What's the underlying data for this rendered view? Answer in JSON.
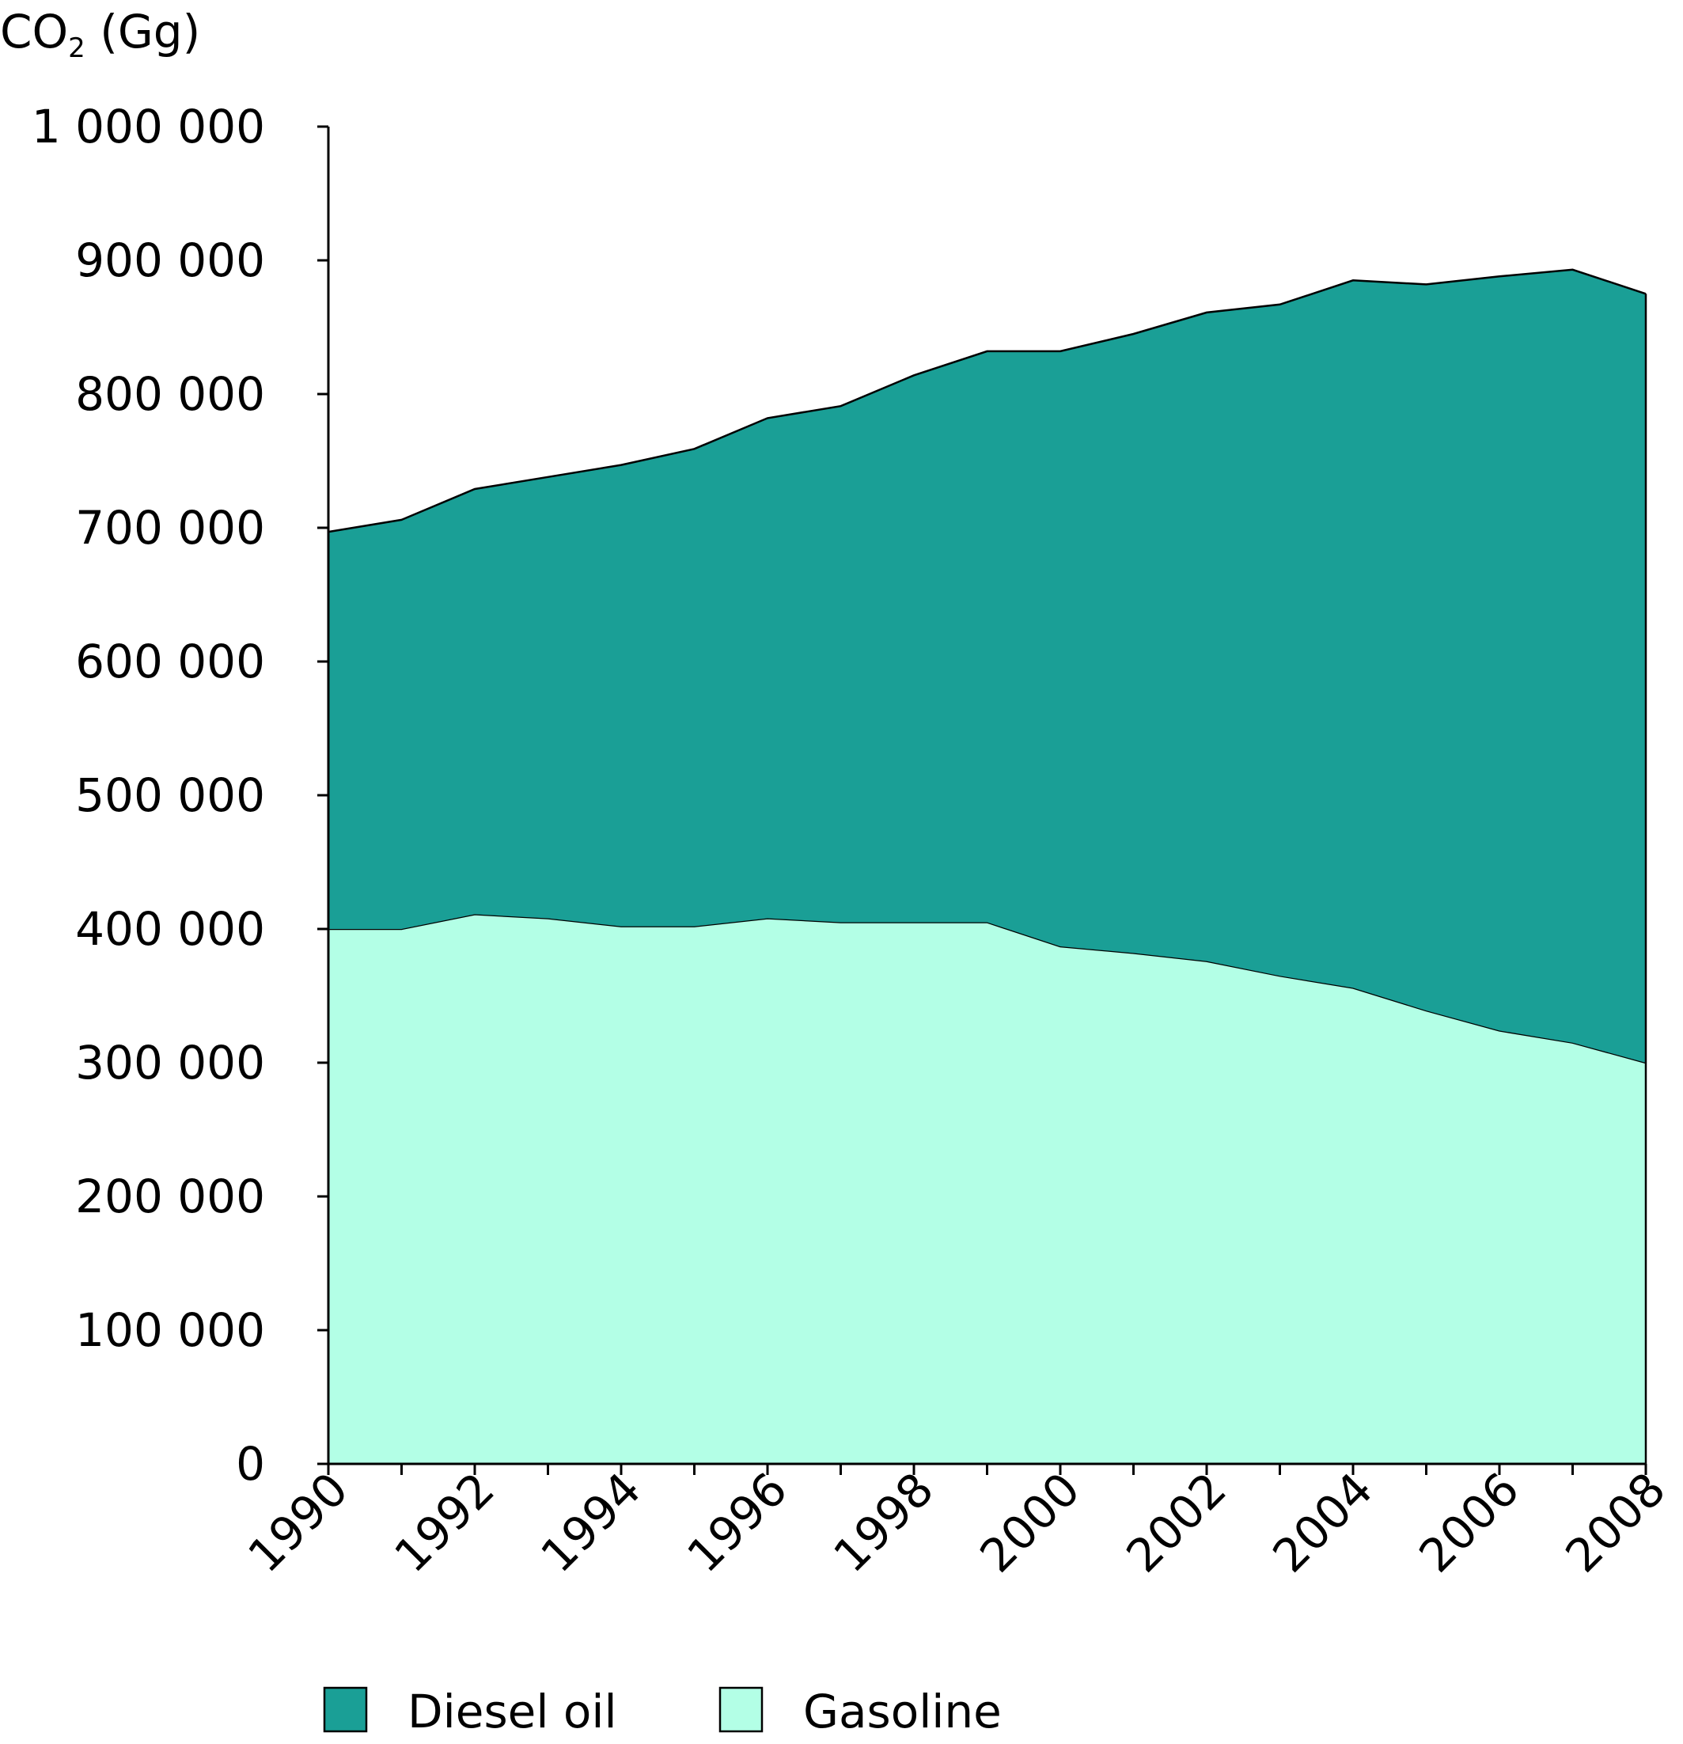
{
  "chart_data": {
    "type": "area",
    "stacked": true,
    "title": "",
    "ylabel": {
      "main": "CO",
      "subscript": "2",
      "unit": " (Gg)"
    },
    "xlabel": "",
    "x": [
      1990,
      1991,
      1992,
      1993,
      1994,
      1995,
      1996,
      1997,
      1998,
      1999,
      2000,
      2001,
      2002,
      2003,
      2004,
      2005,
      2006,
      2007,
      2008
    ],
    "x_tick_labels": [
      "1990",
      "1992",
      "1994",
      "1996",
      "1998",
      "2000",
      "2002",
      "2004",
      "2006",
      "2008"
    ],
    "y_tick_labels": [
      "0",
      "100 000",
      "200 000",
      "300 000",
      "400 000",
      "500 000",
      "600 000",
      "700 000",
      "800 000",
      "900 000",
      "1 000 000"
    ],
    "ylim": [
      0,
      1000000
    ],
    "xlim": [
      1990,
      2008
    ],
    "grid": false,
    "legend_position": "bottom",
    "series": [
      {
        "name": "Gasoline",
        "color": "#b3ffe6",
        "values": [
          400000,
          400000,
          411000,
          408000,
          402000,
          402000,
          408000,
          405000,
          405000,
          405000,
          387000,
          382000,
          376000,
          365000,
          356000,
          339000,
          324000,
          315000,
          300000
        ]
      },
      {
        "name": "Diesel oil",
        "color": "#1a9f96",
        "values": [
          297000,
          306000,
          318000,
          330000,
          345000,
          357000,
          374000,
          386000,
          409000,
          427000,
          445000,
          463000,
          485000,
          502000,
          529000,
          543000,
          564000,
          578000,
          575000
        ]
      }
    ],
    "legend": [
      {
        "name": "Diesel oil",
        "color": "#1a9f96"
      },
      {
        "name": "Gasoline",
        "color": "#b3ffe6"
      }
    ]
  }
}
